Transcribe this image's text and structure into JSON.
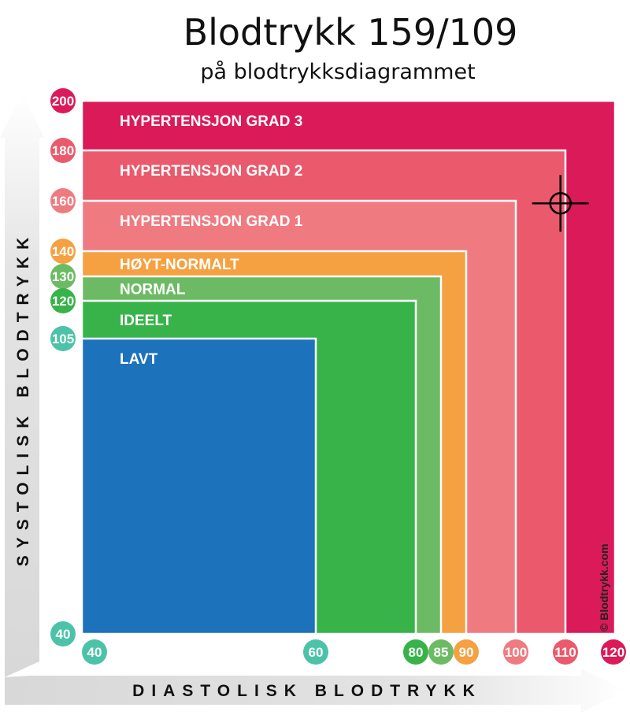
{
  "chart_data": {
    "type": "area",
    "title": "Blodtrykk 159/109",
    "subtitle": "på blodtrykksdiagrammet",
    "xlabel": "DIASTOLISK BLODTRYKK",
    "ylabel": "SYSTOLISK BLODTRYKK",
    "xlim": [
      40,
      120
    ],
    "ylim": [
      40,
      200
    ],
    "zones": [
      {
        "name": "HYPERTENSJON GRAD 3",
        "x_max": 120,
        "y_max": 200,
        "color": "#db1a5a"
      },
      {
        "name": "HYPERTENSJON GRAD 2",
        "x_max": 110,
        "y_max": 180,
        "color": "#ea5a6c"
      },
      {
        "name": "HYPERTENSJON GRAD 1",
        "x_max": 100,
        "y_max": 160,
        "color": "#ef7b80"
      },
      {
        "name": "HØYT-NORMALT",
        "x_max": 90,
        "y_max": 140,
        "color": "#f5a142"
      },
      {
        "name": "NORMAL",
        "x_max": 85,
        "y_max": 130,
        "color": "#6cbb64"
      },
      {
        "name": "IDEELT",
        "x_max": 80,
        "y_max": 120,
        "color": "#37b34a"
      },
      {
        "name": "LAVT",
        "x_max": 60,
        "y_max": 105,
        "color": "#1c72bb"
      }
    ],
    "y_ticks": [
      {
        "value": 200,
        "label": "200",
        "color": "#db1a5a"
      },
      {
        "value": 180,
        "label": "180",
        "color": "#ea5a6c"
      },
      {
        "value": 160,
        "label": "160",
        "color": "#ef7b80"
      },
      {
        "value": 140,
        "label": "140",
        "color": "#f5a142"
      },
      {
        "value": 130,
        "label": "130",
        "color": "#6cbb64"
      },
      {
        "value": 120,
        "label": "120",
        "color": "#37b34a"
      },
      {
        "value": 105,
        "label": "105",
        "color": "#4cc3a8"
      },
      {
        "value": 40,
        "label": "40",
        "color": "#4cc3a8"
      }
    ],
    "x_ticks": [
      {
        "value": 40,
        "label": "40",
        "color": "#4cc3a8"
      },
      {
        "value": 60,
        "label": "60",
        "color": "#4cc3a8"
      },
      {
        "value": 80,
        "label": "80",
        "color": "#37b34a"
      },
      {
        "value": 85,
        "label": "85",
        "color": "#6cbb64"
      },
      {
        "value": 90,
        "label": "90",
        "color": "#f5a142"
      },
      {
        "value": 100,
        "label": "100",
        "color": "#ef7b80"
      },
      {
        "value": 110,
        "label": "110",
        "color": "#ea5a6c"
      },
      {
        "value": 120,
        "label": "120",
        "color": "#db1a5a"
      }
    ],
    "marker": {
      "systolic": 159,
      "diastolic": 109
    },
    "copyright": "© Blodtrykk.com"
  }
}
